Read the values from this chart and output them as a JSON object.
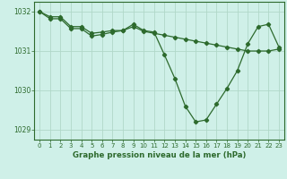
{
  "line1_x": [
    0,
    1,
    2,
    3,
    4,
    5,
    6,
    7,
    8,
    9,
    10,
    11,
    12,
    13,
    14,
    15,
    16,
    17,
    18,
    19,
    20,
    21,
    22,
    23
  ],
  "line1_y": [
    1032.0,
    1031.82,
    1031.82,
    1031.57,
    1031.57,
    1031.38,
    1031.42,
    1031.48,
    1031.52,
    1031.68,
    1031.52,
    1031.48,
    1030.9,
    1030.3,
    1029.6,
    1029.2,
    1029.25,
    1029.65,
    1030.05,
    1030.5,
    1031.18,
    1031.62,
    1031.68,
    1031.1
  ],
  "line2_x": [
    0,
    1,
    2,
    3,
    4,
    5,
    6,
    7,
    8,
    9,
    10,
    11,
    12,
    13,
    14,
    15,
    16,
    17,
    18,
    19,
    20,
    21,
    22,
    23
  ],
  "line2_y": [
    1032.0,
    1031.87,
    1031.87,
    1031.62,
    1031.62,
    1031.45,
    1031.48,
    1031.52,
    1031.52,
    1031.62,
    1031.5,
    1031.45,
    1031.4,
    1031.35,
    1031.3,
    1031.25,
    1031.2,
    1031.15,
    1031.1,
    1031.05,
    1031.0,
    1031.0,
    1031.0,
    1031.05
  ],
  "line_color": "#2d6a2d",
  "bg_color": "#cff0e8",
  "grid_color": "#b0d8c8",
  "xlabel": "Graphe pression niveau de la mer (hPa)",
  "ylim": [
    1028.75,
    1032.25
  ],
  "xlim": [
    -0.5,
    23.5
  ],
  "yticks": [
    1029,
    1030,
    1031,
    1032
  ],
  "xticks": [
    0,
    1,
    2,
    3,
    4,
    5,
    6,
    7,
    8,
    9,
    10,
    11,
    12,
    13,
    14,
    15,
    16,
    17,
    18,
    19,
    20,
    21,
    22,
    23
  ],
  "tick_fontsize": 5.0,
  "xlabel_fontsize": 6.2,
  "ytick_fontsize": 5.5
}
